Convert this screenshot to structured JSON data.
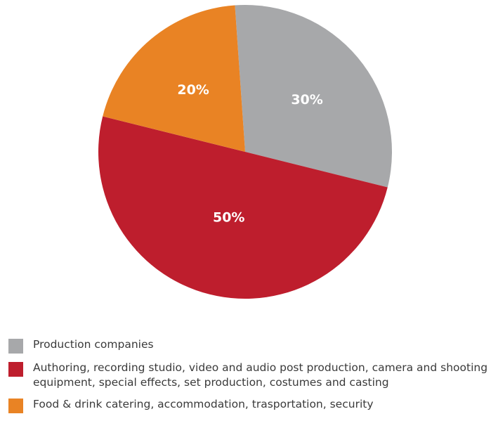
{
  "chart_data": {
    "type": "pie",
    "title": "",
    "slices": [
      {
        "label": "Production companies",
        "value": 30,
        "value_label": "30%",
        "color": "#a7a8aa"
      },
      {
        "label": "Authoring, recording studio, video and audio post production, camera and shooting equipment, special effects, set production, costumes and casting",
        "value": 50,
        "value_label": "50%",
        "color": "#be1e2d"
      },
      {
        "label": "Food & drink catering, accommodation, trasportation, security",
        "value": 20,
        "value_label": "20%",
        "color": "#e98324"
      }
    ],
    "legend_position": "bottom"
  }
}
